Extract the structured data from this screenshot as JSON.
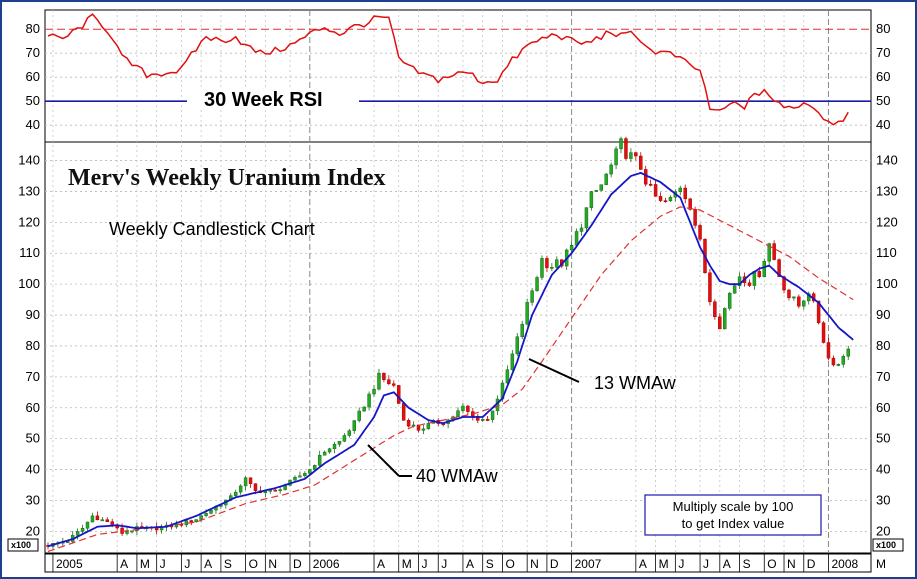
{
  "chart_data": {
    "type": "candlestick",
    "title": "Merv's Weekly Uranium Index",
    "subtitle": "Weekly Candlestick Chart",
    "axis_multiplier_label": "x100",
    "note_line1": "Multiply scale by 100",
    "note_line2": "to get Index value",
    "price_panel": {
      "ylim": [
        13,
        146
      ],
      "yticks": [
        20,
        30,
        40,
        50,
        60,
        70,
        80,
        90,
        100,
        110,
        120,
        130,
        140
      ],
      "ytick_labels": [
        "20",
        "30",
        "40",
        "50",
        "60",
        "70",
        "80",
        "90",
        "100",
        "110",
        "120",
        "130",
        "140"
      ]
    },
    "rsi_panel": {
      "title": "30 Week RSI",
      "ylim": [
        33,
        88
      ],
      "yticks": [
        40,
        50,
        60,
        70,
        80
      ],
      "ytick_labels": [
        "40",
        "50",
        "60",
        "70",
        "80"
      ],
      "overbought_level": 80,
      "midline_level": 50
    },
    "x_axis": {
      "week_count": 166,
      "labels": [
        {
          "text": "2005",
          "week": 1
        },
        {
          "text": "A",
          "week": 14
        },
        {
          "text": "M",
          "week": 18
        },
        {
          "text": "J",
          "week": 22
        },
        {
          "text": "J",
          "week": 27
        },
        {
          "text": "A",
          "week": 31
        },
        {
          "text": "S",
          "week": 35
        },
        {
          "text": "O",
          "week": 40
        },
        {
          "text": "N",
          "week": 44
        },
        {
          "text": "D",
          "week": 49
        },
        {
          "text": "2006",
          "week": 53
        },
        {
          "text": "A",
          "week": 66
        },
        {
          "text": "M",
          "week": 71
        },
        {
          "text": "J",
          "week": 75
        },
        {
          "text": "J",
          "week": 79
        },
        {
          "text": "A",
          "week": 84
        },
        {
          "text": "S",
          "week": 88
        },
        {
          "text": "O",
          "week": 92
        },
        {
          "text": "N",
          "week": 97
        },
        {
          "text": "D",
          "week": 101
        },
        {
          "text": "2007",
          "week": 106
        },
        {
          "text": "A",
          "week": 119
        },
        {
          "text": "M",
          "week": 123
        },
        {
          "text": "J",
          "week": 127
        },
        {
          "text": "J",
          "week": 132
        },
        {
          "text": "A",
          "week": 136
        },
        {
          "text": "S",
          "week": 140
        },
        {
          "text": "O",
          "week": 145
        },
        {
          "text": "N",
          "week": 149
        },
        {
          "text": "D",
          "week": 153
        },
        {
          "text": "2008",
          "week": 158
        },
        {
          "text": "M",
          "week": 167
        }
      ],
      "year_separators": [
        53,
        106,
        158
      ]
    },
    "annotations": [
      {
        "text": "13 WMAw",
        "week": 119,
        "value": 69,
        "arrow_to_week": 100,
        "arrow_to_value": 78
      },
      {
        "text": "40 WMAw",
        "week": 76,
        "value": 39,
        "arrow_to_week": 66,
        "arrow_to_value": 46
      }
    ],
    "close_anchors": [
      [
        0,
        15.5
      ],
      [
        4,
        17
      ],
      [
        7,
        21
      ],
      [
        9,
        25
      ],
      [
        12,
        23
      ],
      [
        15,
        19.5
      ],
      [
        18,
        21
      ],
      [
        22,
        21
      ],
      [
        26,
        22
      ],
      [
        30,
        24
      ],
      [
        34,
        28
      ],
      [
        37,
        31
      ],
      [
        40,
        37
      ],
      [
        42,
        33
      ],
      [
        46,
        33
      ],
      [
        50,
        37
      ],
      [
        53,
        40
      ],
      [
        56,
        46
      ],
      [
        59,
        49
      ],
      [
        62,
        55
      ],
      [
        65,
        64
      ],
      [
        67,
        70
      ],
      [
        70,
        67
      ],
      [
        72,
        56
      ],
      [
        75,
        53
      ],
      [
        78,
        55
      ],
      [
        81,
        56
      ],
      [
        84,
        60
      ],
      [
        86,
        57
      ],
      [
        89,
        56
      ],
      [
        92,
        67
      ],
      [
        95,
        82
      ],
      [
        97,
        93
      ],
      [
        100,
        108
      ],
      [
        102,
        106
      ],
      [
        104,
        107
      ],
      [
        106,
        112
      ],
      [
        108,
        120
      ],
      [
        110,
        128
      ],
      [
        112,
        132
      ],
      [
        114,
        138
      ],
      [
        116,
        145
      ],
      [
        118,
        141
      ],
      [
        120,
        138
      ],
      [
        122,
        130
      ],
      [
        124,
        126
      ],
      [
        126,
        127
      ],
      [
        128,
        132
      ],
      [
        130,
        126
      ],
      [
        132,
        113
      ],
      [
        134,
        95
      ],
      [
        136,
        87
      ],
      [
        138,
        97
      ],
      [
        140,
        103
      ],
      [
        142,
        101
      ],
      [
        144,
        104
      ],
      [
        146,
        113
      ],
      [
        148,
        103
      ],
      [
        150,
        96
      ],
      [
        152,
        93
      ],
      [
        154,
        98
      ],
      [
        156,
        88
      ],
      [
        158,
        76
      ],
      [
        160,
        74
      ],
      [
        162,
        80
      ]
    ],
    "sma13_anchors": [
      [
        0,
        15.2
      ],
      [
        5,
        17.5
      ],
      [
        10,
        21.5
      ],
      [
        14,
        22
      ],
      [
        18,
        21
      ],
      [
        24,
        21.5
      ],
      [
        30,
        25
      ],
      [
        38,
        31
      ],
      [
        46,
        34
      ],
      [
        52,
        37
      ],
      [
        56,
        42
      ],
      [
        62,
        48
      ],
      [
        66,
        57
      ],
      [
        68,
        64
      ],
      [
        70,
        65
      ],
      [
        73,
        60
      ],
      [
        77,
        56
      ],
      [
        80,
        55
      ],
      [
        84,
        57
      ],
      [
        88,
        57
      ],
      [
        92,
        63
      ],
      [
        95,
        75
      ],
      [
        98,
        90
      ],
      [
        102,
        103
      ],
      [
        106,
        110
      ],
      [
        110,
        119
      ],
      [
        114,
        129
      ],
      [
        118,
        135
      ],
      [
        120,
        136
      ],
      [
        124,
        133
      ],
      [
        128,
        128
      ],
      [
        130,
        120
      ],
      [
        132,
        112
      ],
      [
        134,
        106
      ],
      [
        136,
        101
      ],
      [
        138,
        100
      ],
      [
        140,
        100
      ],
      [
        142,
        103
      ],
      [
        144,
        105
      ],
      [
        146,
        106
      ],
      [
        148,
        103
      ],
      [
        150,
        101
      ],
      [
        152,
        99
      ],
      [
        156,
        94
      ],
      [
        160,
        86
      ],
      [
        163,
        82
      ]
    ],
    "sma40_anchors": [
      [
        0,
        13.5
      ],
      [
        10,
        19
      ],
      [
        20,
        21
      ],
      [
        30,
        23
      ],
      [
        40,
        29
      ],
      [
        48,
        32
      ],
      [
        54,
        35
      ],
      [
        60,
        41
      ],
      [
        66,
        47
      ],
      [
        70,
        51
      ],
      [
        74,
        54
      ],
      [
        80,
        56
      ],
      [
        86,
        58
      ],
      [
        92,
        61
      ],
      [
        96,
        66
      ],
      [
        100,
        75
      ],
      [
        106,
        89
      ],
      [
        112,
        103
      ],
      [
        118,
        114
      ],
      [
        124,
        122
      ],
      [
        128,
        125
      ],
      [
        132,
        124
      ],
      [
        138,
        119
      ],
      [
        144,
        114
      ],
      [
        150,
        109
      ],
      [
        156,
        102
      ],
      [
        160,
        98
      ],
      [
        163,
        95
      ]
    ],
    "rsi_anchors": [
      [
        0,
        77
      ],
      [
        3,
        76
      ],
      [
        6,
        80
      ],
      [
        9,
        85
      ],
      [
        11,
        82
      ],
      [
        13,
        77
      ],
      [
        15,
        68
      ],
      [
        18,
        64
      ],
      [
        20,
        61
      ],
      [
        24,
        62
      ],
      [
        27,
        63
      ],
      [
        29,
        69
      ],
      [
        32,
        77
      ],
      [
        35,
        75
      ],
      [
        38,
        77
      ],
      [
        40,
        73
      ],
      [
        43,
        70
      ],
      [
        46,
        71
      ],
      [
        50,
        74
      ],
      [
        53,
        78
      ],
      [
        56,
        81
      ],
      [
        59,
        78
      ],
      [
        62,
        81
      ],
      [
        65,
        83
      ],
      [
        67,
        85
      ],
      [
        69,
        84
      ],
      [
        71,
        68
      ],
      [
        73,
        64
      ],
      [
        76,
        61
      ],
      [
        79,
        59
      ],
      [
        82,
        61
      ],
      [
        85,
        62
      ],
      [
        88,
        58
      ],
      [
        91,
        59
      ],
      [
        94,
        67
      ],
      [
        97,
        73
      ],
      [
        100,
        76
      ],
      [
        103,
        78
      ],
      [
        106,
        75
      ],
      [
        109,
        74
      ],
      [
        112,
        77
      ],
      [
        114,
        79
      ],
      [
        116,
        77
      ],
      [
        118,
        78
      ],
      [
        120,
        76
      ],
      [
        122,
        71
      ],
      [
        125,
        70
      ],
      [
        127,
        69
      ],
      [
        129,
        66
      ],
      [
        131,
        64
      ],
      [
        132,
        62
      ],
      [
        133,
        56
      ],
      [
        134,
        47
      ],
      [
        135,
        45
      ],
      [
        137,
        47
      ],
      [
        139,
        49
      ],
      [
        141,
        48
      ],
      [
        143,
        52
      ],
      [
        145,
        55
      ],
      [
        147,
        50
      ],
      [
        149,
        47
      ],
      [
        151,
        48
      ],
      [
        153,
        49
      ],
      [
        155,
        48
      ],
      [
        157,
        43
      ],
      [
        159,
        41
      ],
      [
        161,
        43
      ],
      [
        162,
        45
      ]
    ]
  }
}
